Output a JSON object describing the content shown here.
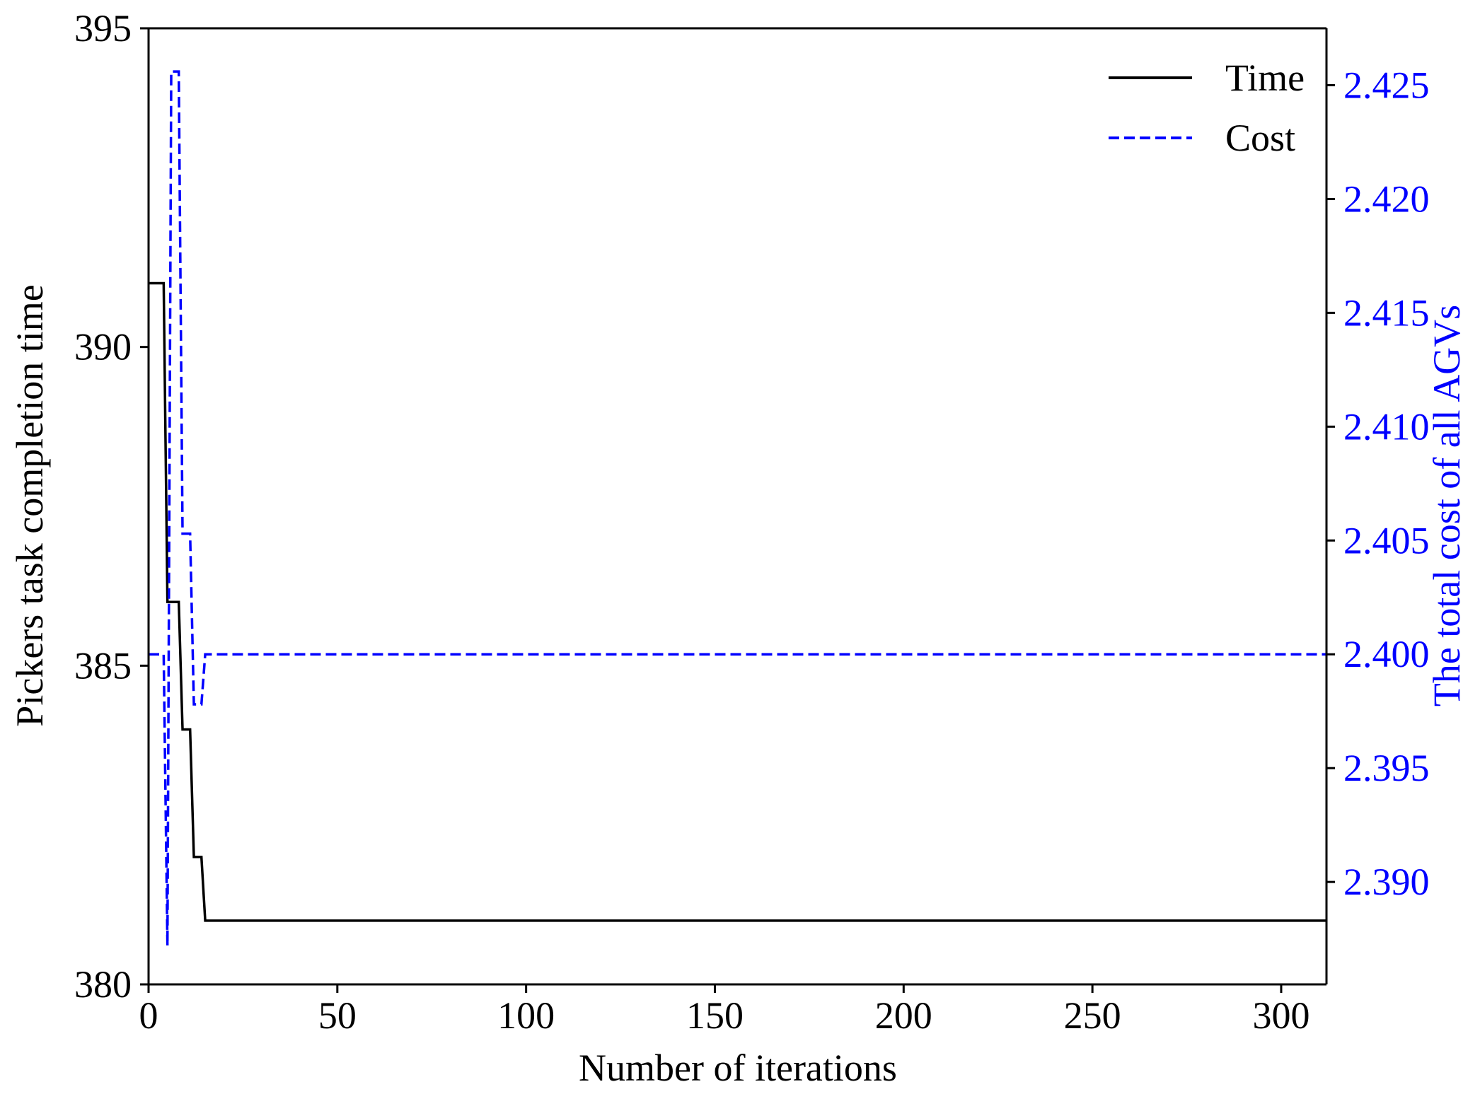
{
  "chart_data": {
    "type": "line",
    "title": "",
    "xlabel": "Number of iterations",
    "ylabel_left": "Pickers task completion time",
    "ylabel_right": "The total cost of all AGVs",
    "xlim": [
      0,
      312
    ],
    "ylim_left": [
      380,
      395
    ],
    "ylim_right": [
      2.3855,
      2.4275
    ],
    "x_ticks": [
      0,
      50,
      100,
      150,
      200,
      250,
      300
    ],
    "x_tick_labels": [
      "0",
      "50",
      "100",
      "150",
      "200",
      "250",
      "300"
    ],
    "y_left_ticks": [
      380,
      385,
      390,
      395
    ],
    "y_left_tick_labels": [
      "380",
      "385",
      "390",
      "395"
    ],
    "y_right_ticks": [
      2.39,
      2.395,
      2.4,
      2.405,
      2.41,
      2.415,
      2.42,
      2.425
    ],
    "y_right_tick_labels": [
      "2.390",
      "2.395",
      "2.400",
      "2.405",
      "2.410",
      "2.415",
      "2.420",
      "2.425"
    ],
    "grid": false,
    "legend_placement": "top-right",
    "series": [
      {
        "name": "Time",
        "axis": "left",
        "style": "solid",
        "color": "#000000",
        "points": [
          [
            0,
            391
          ],
          [
            4,
            391
          ],
          [
            5,
            386
          ],
          [
            8,
            386
          ],
          [
            9,
            384
          ],
          [
            11,
            384
          ],
          [
            12,
            382
          ],
          [
            14,
            382
          ],
          [
            15,
            381
          ],
          [
            312,
            381
          ]
        ]
      },
      {
        "name": "Cost",
        "axis": "right",
        "style": "dashed",
        "color": "#0000ff",
        "points": [
          [
            0,
            2.4
          ],
          [
            4,
            2.4
          ],
          [
            5,
            2.3872
          ],
          [
            6,
            2.4256
          ],
          [
            8,
            2.4256
          ],
          [
            9,
            2.4053
          ],
          [
            11,
            2.4053
          ],
          [
            12,
            2.3978
          ],
          [
            14,
            2.3978
          ],
          [
            15,
            2.4
          ],
          [
            312,
            2.4
          ]
        ]
      }
    ]
  }
}
